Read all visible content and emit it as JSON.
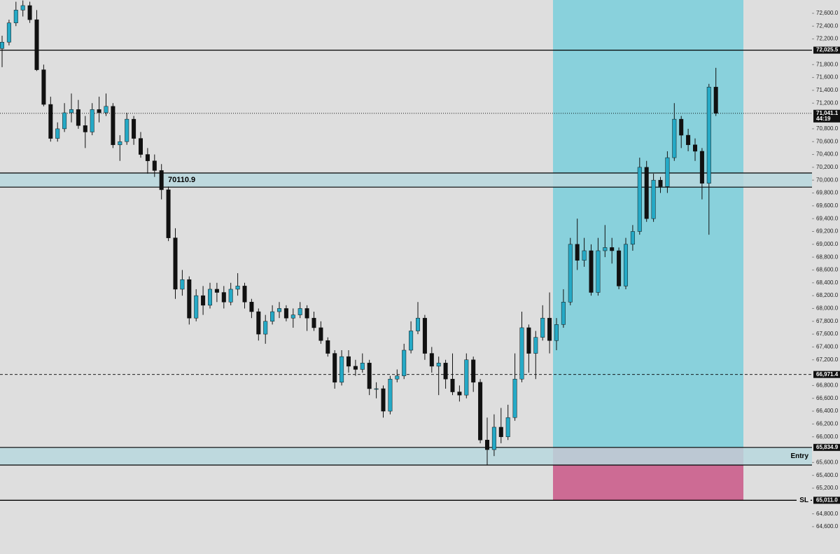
{
  "chart_data": {
    "type": "candlestick",
    "up_color": "#25a9c6",
    "down_color": "#111111",
    "open": [
      72050,
      72150,
      72450,
      72650,
      72720,
      72500,
      71720,
      71180,
      70650,
      70800,
      71050,
      71100,
      70850,
      70750,
      71100,
      71050,
      71150,
      70550,
      70600,
      70950,
      70650,
      70400,
      70300,
      70150,
      69850,
      69100,
      68300,
      68450,
      67850,
      68200,
      68050,
      68300,
      68250,
      68100,
      68300,
      68350,
      68100,
      67950,
      67600,
      67800,
      67950,
      68000,
      67850,
      67900,
      68000,
      67850,
      67700,
      67500,
      67300,
      66850,
      67250,
      67100,
      67050,
      67150,
      66750,
      66750,
      66400,
      66900,
      66950,
      67350,
      67650,
      67850,
      67300,
      67100,
      67150,
      66900,
      66700,
      66650,
      67200,
      66850,
      65950,
      65800,
      66150,
      66000,
      66300,
      66900,
      67700,
      67300,
      67550,
      67850,
      67500,
      67750,
      68100,
      69000,
      68750,
      68900,
      68250,
      68900,
      68950,
      68900,
      68350,
      69000,
      69200,
      70200,
      69400,
      70000,
      69900,
      70350,
      70950,
      70700,
      70550,
      70450,
      69950,
      71450
    ],
    "high": [
      72250,
      72500,
      72780,
      72800,
      72780,
      72650,
      71800,
      71300,
      70900,
      71200,
      71350,
      71250,
      71000,
      71200,
      71300,
      71350,
      71200,
      70700,
      71050,
      71000,
      70750,
      70500,
      70400,
      70250,
      69900,
      69250,
      68600,
      68500,
      68300,
      68350,
      68400,
      68400,
      68350,
      68400,
      68550,
      68400,
      68150,
      68000,
      67900,
      68050,
      68100,
      68050,
      68000,
      68100,
      68050,
      67950,
      67800,
      67550,
      67350,
      67350,
      67350,
      67200,
      67300,
      67200,
      66850,
      66800,
      66950,
      67050,
      67450,
      67800,
      68100,
      67900,
      67400,
      67250,
      67200,
      67300,
      66800,
      67300,
      67250,
      66900,
      66300,
      66350,
      66450,
      66500,
      67300,
      67950,
      67750,
      67650,
      68050,
      68250,
      67850,
      68300,
      69100,
      69400,
      69100,
      69000,
      69100,
      69300,
      69100,
      68950,
      69100,
      69300,
      70350,
      70300,
      70100,
      70050,
      70450,
      71200,
      71000,
      70800,
      70650,
      70500,
      71500,
      71750
    ],
    "low": [
      71760,
      72100,
      72400,
      72550,
      72450,
      71700,
      71150,
      70600,
      70600,
      70750,
      70900,
      70800,
      70500,
      70700,
      70900,
      71000,
      70500,
      70300,
      70550,
      70550,
      70350,
      70100,
      70050,
      69700,
      69050,
      68150,
      68200,
      67750,
      67800,
      67900,
      68000,
      68100,
      68000,
      68050,
      68200,
      68000,
      67850,
      67500,
      67450,
      67750,
      67850,
      67800,
      67700,
      67850,
      67650,
      67650,
      67450,
      67250,
      66750,
      66800,
      67000,
      66950,
      67000,
      66650,
      66600,
      66300,
      66350,
      66850,
      66900,
      67300,
      67600,
      67200,
      67000,
      66650,
      66750,
      66650,
      66550,
      66600,
      66700,
      65900,
      65560,
      65700,
      65900,
      65950,
      66250,
      66850,
      67000,
      66900,
      67500,
      67300,
      67350,
      67700,
      68050,
      68600,
      68650,
      68200,
      68200,
      68800,
      68700,
      68300,
      68300,
      68900,
      69150,
      69350,
      69350,
      69800,
      69800,
      70300,
      70500,
      70450,
      70300,
      69700,
      69150,
      71000
    ],
    "close": [
      72150,
      72450,
      72650,
      72720,
      72500,
      71720,
      71180,
      70650,
      70800,
      71050,
      71100,
      70850,
      70750,
      71100,
      71050,
      71150,
      70550,
      70600,
      70950,
      70650,
      70400,
      70300,
      70150,
      69850,
      69100,
      68300,
      68450,
      67850,
      68200,
      68050,
      68300,
      68250,
      68100,
      68300,
      68350,
      68100,
      67950,
      67600,
      67800,
      67950,
      68000,
      67850,
      67900,
      68000,
      67850,
      67700,
      67500,
      67300,
      66850,
      67250,
      67100,
      67050,
      67150,
      66750,
      66750,
      66400,
      66900,
      66950,
      67350,
      67650,
      67850,
      67300,
      67100,
      67150,
      66900,
      66700,
      66650,
      67200,
      66850,
      65950,
      65800,
      66150,
      66000,
      66300,
      66900,
      67700,
      67300,
      67550,
      67850,
      67500,
      67750,
      68100,
      69000,
      68750,
      68900,
      68250,
      68900,
      68950,
      68900,
      68350,
      69000,
      69200,
      70200,
      69400,
      70000,
      69900,
      70350,
      70950,
      70700,
      70550,
      70450,
      69950,
      71450,
      71041.1
    ],
    "ylim": [
      64174,
      72807
    ],
    "yticks": [
      {
        "value": 72600,
        "label": "72,600.0"
      },
      {
        "value": 72400,
        "label": "72,400.0"
      },
      {
        "value": 72200,
        "label": "72,200.0"
      },
      {
        "value": 71800,
        "label": "71,800.0"
      },
      {
        "value": 71600,
        "label": "71,600.0"
      },
      {
        "value": 71400,
        "label": "71,400.0"
      },
      {
        "value": 71200,
        "label": "71,200.0"
      },
      {
        "value": 70800,
        "label": "70,800.0"
      },
      {
        "value": 70600,
        "label": "70,600.0"
      },
      {
        "value": 70400,
        "label": "70,400.0"
      },
      {
        "value": 70200,
        "label": "70,200.0"
      },
      {
        "value": 70000,
        "label": "70,000.0"
      },
      {
        "value": 69800,
        "label": "69,800.0"
      },
      {
        "value": 69600,
        "label": "69,600.0"
      },
      {
        "value": 69400,
        "label": "69,400.0"
      },
      {
        "value": 69200,
        "label": "69,200.0"
      },
      {
        "value": 69000,
        "label": "69,000.0"
      },
      {
        "value": 68800,
        "label": "68,800.0"
      },
      {
        "value": 68600,
        "label": "68,600.0"
      },
      {
        "value": 68400,
        "label": "68,400.0"
      },
      {
        "value": 68200,
        "label": "68,200.0"
      },
      {
        "value": 68000,
        "label": "68,000.0"
      },
      {
        "value": 67800,
        "label": "67,800.0"
      },
      {
        "value": 67600,
        "label": "67,600.0"
      },
      {
        "value": 67400,
        "label": "67,400.0"
      },
      {
        "value": 67200,
        "label": "67,200.0"
      },
      {
        "value": 66800,
        "label": "66,800.0"
      },
      {
        "value": 66600,
        "label": "66,600.0"
      },
      {
        "value": 66400,
        "label": "66,400.0"
      },
      {
        "value": 66200,
        "label": "66,200.0"
      },
      {
        "value": 66000,
        "label": "66,000.0"
      },
      {
        "value": 65600,
        "label": "65,600.0"
      },
      {
        "value": 65400,
        "label": "65,400.0"
      },
      {
        "value": 65200,
        "label": "65,200.0"
      },
      {
        "value": 64800,
        "label": "64,800.0"
      },
      {
        "value": 64600,
        "label": "64,600.0"
      }
    ],
    "levels": [
      {
        "value": 72025.5,
        "label": "72,025.5",
        "style": "solid"
      },
      {
        "value": 71041.1,
        "label": "71,041.1",
        "style": "dotted",
        "countdown": "44:19"
      },
      {
        "value": 66971.4,
        "label": "66,971.4",
        "style": "dashed"
      }
    ],
    "zone": {
      "top": 70110.9,
      "bottom": 69891,
      "color": "#b9d8de"
    },
    "entry": {
      "top": 65834.9,
      "bottom": 65560,
      "label": "Entry",
      "price_label": "65,834.9",
      "color": "#b9d8de"
    },
    "stop": {
      "value": 65011,
      "label": "SL",
      "price_label": "65,011.0"
    },
    "profit_color": "#89d1dc",
    "loss_color": "#cd6b94"
  }
}
